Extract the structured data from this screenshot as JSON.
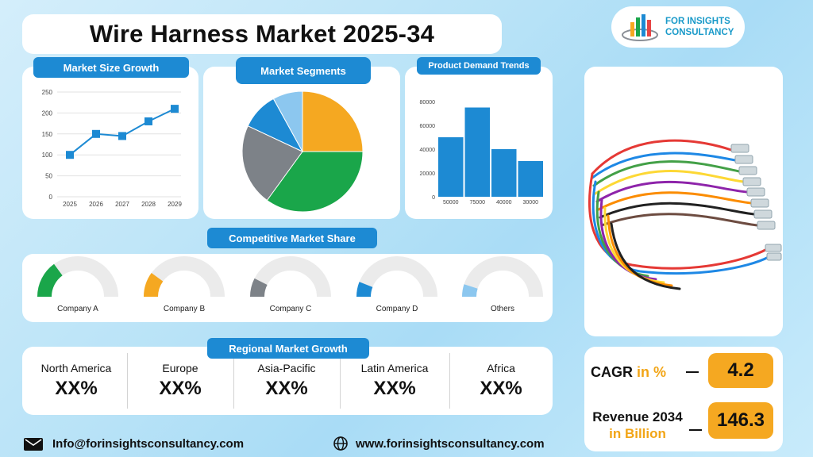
{
  "title": "Wire Harness Market 2025-34",
  "logo": {
    "line1": "FOR INSIGHTS",
    "line2": "CONSULTANCY"
  },
  "market_size": {
    "label": "Market Size Growth",
    "y_ticks": [
      "250",
      "200",
      "150",
      "100",
      "50",
      "0"
    ],
    "x_ticks": [
      "2025",
      "2026",
      "2027",
      "2028",
      "2029"
    ]
  },
  "segments": {
    "label": "Market Segments"
  },
  "demand": {
    "label": "Product Demand Trends",
    "y_ticks": [
      "80000",
      "60000",
      "40000",
      "20000",
      "0"
    ],
    "x_ticks": [
      "50000",
      "75000",
      "40000",
      "30000"
    ]
  },
  "competitive": {
    "label": "Competitive Market Share",
    "companies": [
      {
        "name": "Company A",
        "color": "#1aa64a"
      },
      {
        "name": "Company B",
        "color": "#f5a821"
      },
      {
        "name": "Company C",
        "color": "#7d8288"
      },
      {
        "name": "Company D",
        "color": "#1d8ad3"
      },
      {
        "name": "Others",
        "color": "#8cc7ef"
      }
    ]
  },
  "regional": {
    "label": "Regional Market Growth",
    "regions": [
      {
        "name": "North America",
        "value": "XX%"
      },
      {
        "name": "Europe",
        "value": "XX%"
      },
      {
        "name": "Asia-Pacific",
        "value": "XX%"
      },
      {
        "name": "Latin America",
        "value": "XX%"
      },
      {
        "name": "Africa",
        "value": "XX%"
      }
    ]
  },
  "stats": {
    "cagr_label": "CAGR",
    "cagr_unit": "in %",
    "cagr_value": "4.2",
    "revenue_label": "Revenue 2034",
    "revenue_unit": "in Billion",
    "revenue_value": "146.3"
  },
  "footer": {
    "email": "Info@forinsightsconsultancy.com",
    "website": "www.forinsightsconsultancy.com"
  },
  "chart_data": [
    {
      "type": "line",
      "title": "Market Size Growth",
      "x": [
        "2025",
        "2026",
        "2027",
        "2028",
        "2029"
      ],
      "values": [
        100,
        150,
        145,
        180,
        210
      ],
      "ylim": [
        0,
        250
      ],
      "grid": true,
      "color": "#1d8ad3"
    },
    {
      "type": "pie",
      "title": "Market Segments",
      "values": [
        25,
        35,
        22,
        10,
        8
      ],
      "colors": [
        "#f5a821",
        "#1aa64a",
        "#7d8288",
        "#1d8ad3",
        "#8cc7ef"
      ]
    },
    {
      "type": "bar",
      "title": "Product Demand Trends",
      "categories": [
        "50000",
        "75000",
        "40000",
        "30000"
      ],
      "values": [
        50000,
        75000,
        40000,
        30000
      ],
      "ylim": [
        0,
        80000
      ],
      "color": "#1d8ad3"
    },
    {
      "type": "gauge",
      "title": "Competitive Market Share",
      "categories": [
        "Company A",
        "Company B",
        "Company C",
        "Company D",
        "Others"
      ],
      "values": [
        0.3,
        0.2,
        0.15,
        0.12,
        0.1
      ]
    }
  ]
}
